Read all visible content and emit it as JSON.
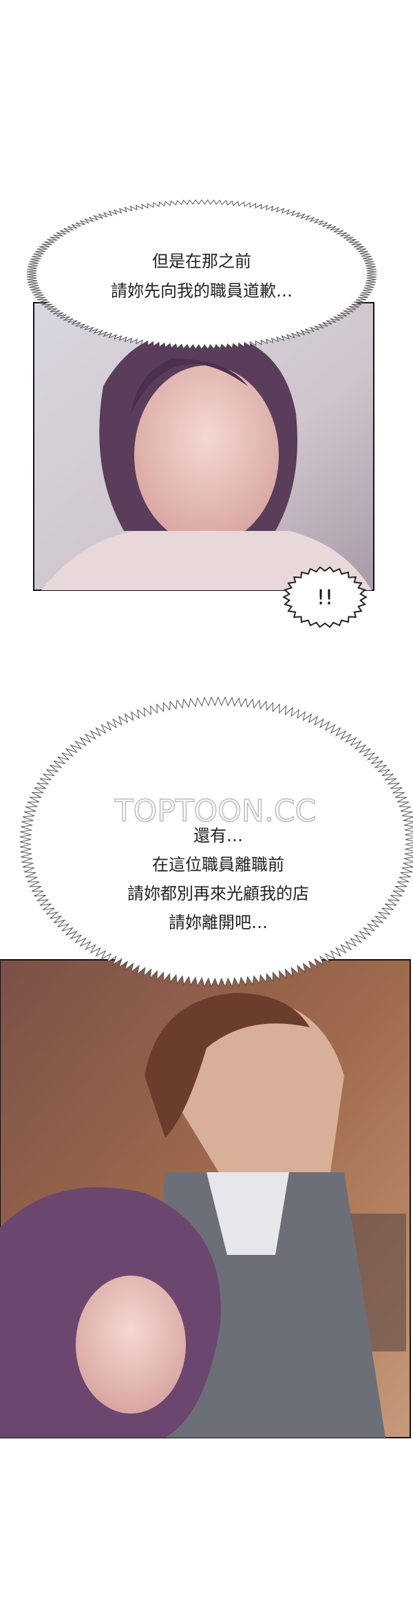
{
  "speech_bubbles": [
    {
      "lines": [
        "但是在那之前",
        "請妳先向我的職員道歉…"
      ]
    },
    {
      "lines": [
        "還有…",
        "在這位職員離職前",
        "請妳都別再來光顧我的店",
        "請妳離開吧…"
      ]
    }
  ],
  "sfx": "!!",
  "watermark": "TOPTOON.CC"
}
